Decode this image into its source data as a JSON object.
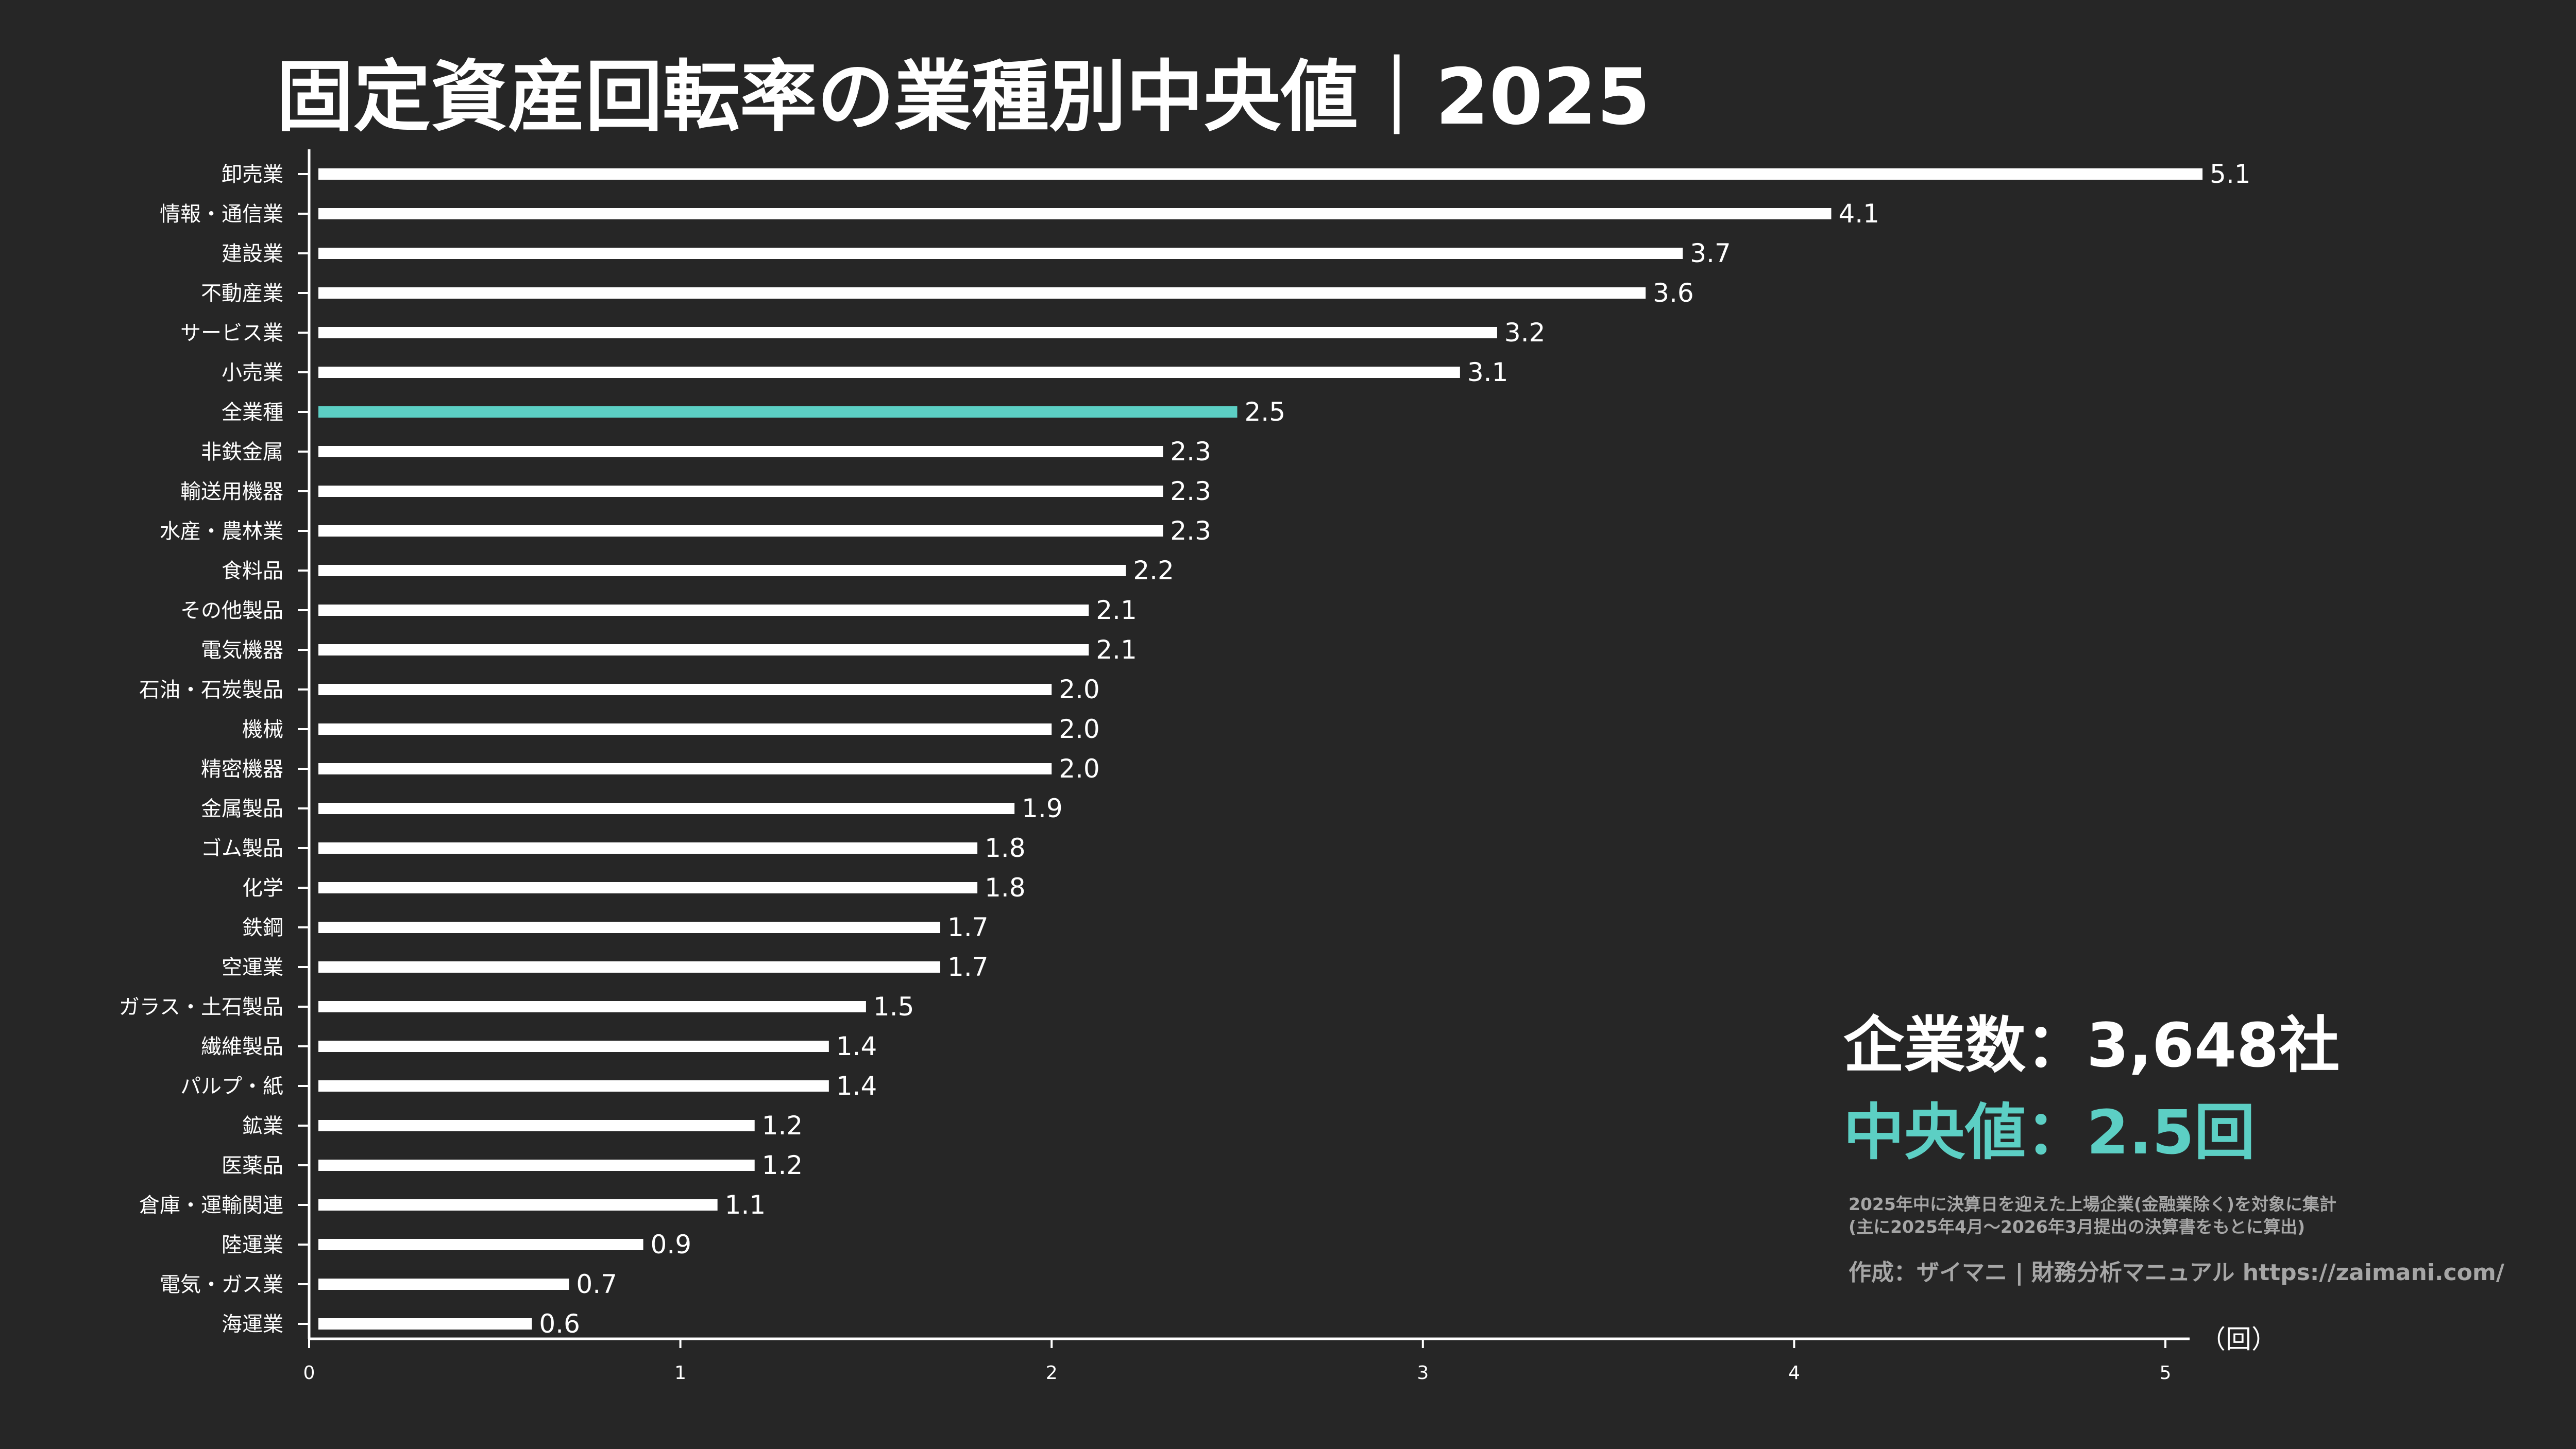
{
  "chart_data": {
    "type": "bar",
    "orientation": "horizontal",
    "title": "固定資産回転率の業種別中央値｜2025",
    "unit_label": "（回）",
    "xlim": [
      0,
      5
    ],
    "xticks": [
      0,
      1,
      2,
      3,
      4,
      5
    ],
    "grid": false,
    "colors": {
      "background": "#262626",
      "bar": "#ffffff",
      "highlight": "#5ccfc4",
      "note": "#a6a6a6"
    },
    "highlight_category": "全業種",
    "categories": [
      "卸売業",
      "情報・通信業",
      "建設業",
      "不動産業",
      "サービス業",
      "小売業",
      "全業種",
      "非鉄金属",
      "輸送用機器",
      "水産・農林業",
      "食料品",
      "その他製品",
      "電気機器",
      "石油・石炭製品",
      "機械",
      "精密機器",
      "金属製品",
      "ゴム製品",
      "化学",
      "鉄鋼",
      "空運業",
      "ガラス・土石製品",
      "繊維製品",
      "パルプ・紙",
      "鉱業",
      "医薬品",
      "倉庫・運輸関連",
      "陸運業",
      "電気・ガス業",
      "海運業"
    ],
    "values": [
      5.1,
      4.1,
      3.7,
      3.6,
      3.2,
      3.1,
      2.5,
      2.3,
      2.3,
      2.3,
      2.2,
      2.1,
      2.1,
      2.0,
      2.0,
      2.0,
      1.9,
      1.8,
      1.8,
      1.7,
      1.7,
      1.5,
      1.4,
      1.4,
      1.2,
      1.2,
      1.1,
      0.9,
      0.7,
      0.6
    ]
  },
  "summary": {
    "company_count": "企業数：3,648社",
    "median": "中央値：2.5回"
  },
  "notes": {
    "line1": "2025年中に決算日を迎えた上場企業(金融業除く)を対象に集計",
    "line2": "(主に2025年4月～2026年3月提出の決算書をもとに算出)",
    "credit": "作成：ザイマニ | 財務分析マニュアル https://zaimani.com/"
  }
}
